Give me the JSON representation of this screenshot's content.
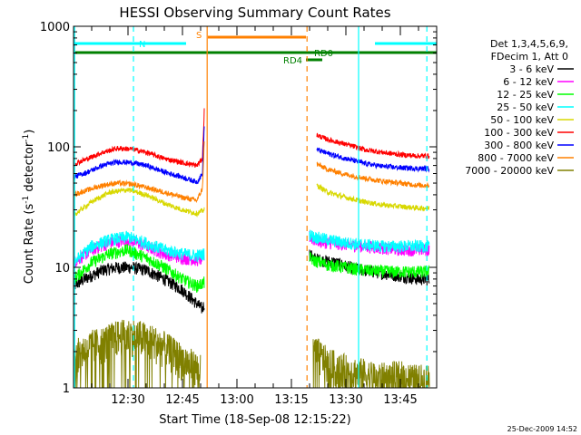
{
  "chart_data": {
    "type": "line",
    "title": "HESSI Observing Summary Count Rates",
    "xlabel": "Start Time (18-Sep-08 12:15:22)",
    "ylabel": "Count Rate (s⁻¹ detector⁻¹)",
    "ylabel_parts": [
      "Count Rate (s",
      "-1",
      " detector",
      "-1",
      ")"
    ],
    "y_scale": "log",
    "ylim": [
      1,
      1000
    ],
    "y_ticks": [
      1,
      10,
      100,
      1000
    ],
    "y_tick_labels": [
      "1",
      "10",
      "100",
      "1000"
    ],
    "xlim_minutes_after_start": [
      0,
      100
    ],
    "x_tick_minutes": [
      15,
      30,
      45,
      60,
      75,
      90
    ],
    "x_tick_labels": [
      "12:30",
      "12:45",
      "13:00",
      "13:15",
      "13:30",
      "13:45"
    ],
    "legend_header": [
      "Det 1,3,4,5,6,9,",
      "FDecim 1, Att 0"
    ],
    "legend_position": "right",
    "date_stamp": "25-Dec-2009 14:52",
    "gap_minutes": [
      36,
      65
    ],
    "series": [
      {
        "name": "3 - 6 keV",
        "color": "#000000",
        "pre": [
          [
            0,
            7
          ],
          [
            3,
            8
          ],
          [
            8,
            9.5
          ],
          [
            12,
            10
          ],
          [
            16,
            10
          ],
          [
            20,
            9.5
          ],
          [
            25,
            8
          ],
          [
            30,
            6.5
          ],
          [
            34,
            5
          ],
          [
            35.5,
            4.5
          ],
          [
            36,
            5
          ]
        ],
        "post": [
          [
            65,
            13
          ],
          [
            66,
            12
          ],
          [
            68,
            11.5
          ],
          [
            72,
            11
          ],
          [
            76,
            10
          ],
          [
            80,
            9.5
          ],
          [
            85,
            9
          ],
          [
            90,
            8.5
          ],
          [
            95,
            8
          ],
          [
            98,
            8
          ]
        ]
      },
      {
        "name": "6 - 12 keV",
        "color": "#ff00ff",
        "pre": [
          [
            0,
            11
          ],
          [
            5,
            14
          ],
          [
            10,
            16
          ],
          [
            15,
            17
          ],
          [
            20,
            15
          ],
          [
            25,
            13
          ],
          [
            30,
            12
          ],
          [
            34,
            11.5
          ],
          [
            36,
            12
          ]
        ],
        "post": [
          [
            65,
            18
          ],
          [
            66,
            17
          ],
          [
            70,
            16
          ],
          [
            75,
            15.5
          ],
          [
            80,
            15
          ],
          [
            85,
            14.5
          ],
          [
            90,
            14
          ],
          [
            95,
            14
          ],
          [
            98,
            14
          ]
        ]
      },
      {
        "name": "12 - 25 keV",
        "color": "#00ff00",
        "pre": [
          [
            0,
            8
          ],
          [
            5,
            11
          ],
          [
            10,
            13
          ],
          [
            15,
            14
          ],
          [
            20,
            12
          ],
          [
            25,
            10
          ],
          [
            30,
            8
          ],
          [
            34,
            7
          ],
          [
            36,
            7.5
          ]
        ],
        "post": [
          [
            65,
            12
          ],
          [
            66,
            11.5
          ],
          [
            70,
            10.5
          ],
          [
            75,
            10
          ],
          [
            80,
            9.5
          ],
          [
            85,
            9.3
          ],
          [
            90,
            9.2
          ],
          [
            95,
            9.2
          ],
          [
            98,
            9.2
          ]
        ]
      },
      {
        "name": "25 - 50 keV",
        "color": "#00ffff",
        "pre": [
          [
            0,
            11
          ],
          [
            5,
            15
          ],
          [
            10,
            17
          ],
          [
            15,
            18
          ],
          [
            20,
            16
          ],
          [
            25,
            14
          ],
          [
            30,
            13
          ],
          [
            34,
            12.5
          ],
          [
            36,
            13
          ]
        ],
        "post": [
          [
            65,
            19
          ],
          [
            66,
            18
          ],
          [
            70,
            17
          ],
          [
            75,
            16
          ],
          [
            80,
            15.5
          ],
          [
            85,
            15
          ],
          [
            90,
            15
          ],
          [
            95,
            15
          ],
          [
            98,
            15
          ]
        ]
      },
      {
        "name": "50 - 100 keV",
        "color": "#d8d800",
        "pre": [
          [
            0,
            27
          ],
          [
            5,
            35
          ],
          [
            10,
            42
          ],
          [
            15,
            44
          ],
          [
            20,
            40
          ],
          [
            25,
            34
          ],
          [
            30,
            30
          ],
          [
            34,
            28
          ],
          [
            36,
            30
          ]
        ],
        "post": [
          [
            67,
            48
          ],
          [
            70,
            42
          ],
          [
            75,
            38
          ],
          [
            80,
            35
          ],
          [
            85,
            33
          ],
          [
            90,
            32
          ],
          [
            95,
            31
          ],
          [
            98,
            31
          ]
        ]
      },
      {
        "name": "100 - 300 keV",
        "color": "#ff0000",
        "pre": [
          [
            0,
            72
          ],
          [
            4,
            80
          ],
          [
            8,
            90
          ],
          [
            12,
            97
          ],
          [
            16,
            96
          ],
          [
            20,
            90
          ],
          [
            25,
            80
          ],
          [
            30,
            74
          ],
          [
            34,
            70
          ],
          [
            35.5,
            80
          ],
          [
            36,
            200
          ]
        ],
        "post": [
          [
            67,
            125
          ],
          [
            70,
            115
          ],
          [
            75,
            105
          ],
          [
            80,
            95
          ],
          [
            85,
            90
          ],
          [
            90,
            86
          ],
          [
            95,
            84
          ],
          [
            98,
            84
          ]
        ]
      },
      {
        "name": "300 - 800 keV",
        "color": "#0000ff",
        "pre": [
          [
            0,
            56
          ],
          [
            4,
            62
          ],
          [
            8,
            70
          ],
          [
            12,
            75
          ],
          [
            16,
            74
          ],
          [
            20,
            70
          ],
          [
            25,
            62
          ],
          [
            30,
            56
          ],
          [
            34,
            51
          ],
          [
            35.5,
            60
          ],
          [
            36,
            150
          ]
        ],
        "post": [
          [
            67,
            95
          ],
          [
            70,
            88
          ],
          [
            75,
            80
          ],
          [
            80,
            73
          ],
          [
            85,
            69
          ],
          [
            90,
            67
          ],
          [
            95,
            66
          ],
          [
            98,
            66
          ]
        ]
      },
      {
        "name": "800 - 7000 keV",
        "color": "#ff8000",
        "pre": [
          [
            0,
            40
          ],
          [
            4,
            44
          ],
          [
            8,
            48
          ],
          [
            12,
            50
          ],
          [
            16,
            49
          ],
          [
            20,
            46
          ],
          [
            25,
            42
          ],
          [
            30,
            38
          ],
          [
            34,
            36
          ],
          [
            35.5,
            45
          ],
          [
            36,
            110
          ]
        ],
        "post": [
          [
            67,
            72
          ],
          [
            70,
            65
          ],
          [
            75,
            59
          ],
          [
            80,
            55
          ],
          [
            85,
            52
          ],
          [
            90,
            50
          ],
          [
            95,
            48
          ],
          [
            98,
            48
          ]
        ]
      },
      {
        "name": "7000 - 20000 keV",
        "color": "#808000",
        "pre": [
          [
            0,
            1.8
          ],
          [
            4,
            2.2
          ],
          [
            8,
            2.4
          ],
          [
            12,
            2.7
          ],
          [
            16,
            2.8
          ],
          [
            20,
            2.6
          ],
          [
            24,
            2.3
          ],
          [
            28,
            1.9
          ],
          [
            32,
            1.6
          ],
          [
            35,
            1.4
          ]
        ],
        "post": [
          [
            66,
            2.1
          ],
          [
            70,
            1.6
          ],
          [
            75,
            1.4
          ],
          [
            80,
            1.3
          ],
          [
            85,
            1.2
          ],
          [
            90,
            1.25
          ],
          [
            95,
            1.15
          ],
          [
            98,
            1.2
          ]
        ]
      }
    ],
    "state_bars": [
      {
        "label": "N",
        "color": "#00ffff",
        "segments": [
          [
            0,
            31
          ],
          [
            83,
            100
          ]
        ]
      },
      {
        "label": "S",
        "color": "#ff8000",
        "segments": [
          [
            37,
            64
          ]
        ]
      },
      {
        "label": "RD0",
        "color": "#008000",
        "segments": [
          [
            0,
            100
          ]
        ]
      },
      {
        "label": "RD4",
        "color": "#008000",
        "segments": [
          [
            64,
            68.5
          ]
        ]
      }
    ],
    "vertical_lines": [
      {
        "x": 0.3,
        "color": "#00ffff",
        "style": "solid"
      },
      {
        "x": 16.5,
        "color": "#00ffff",
        "style": "dashed"
      },
      {
        "x": 36.8,
        "color": "#ff8000",
        "style": "solid"
      },
      {
        "x": 64.3,
        "color": "#ff8000",
        "style": "dashed"
      },
      {
        "x": 78.5,
        "color": "#00ffff",
        "style": "solid"
      },
      {
        "x": 97.3,
        "color": "#00ffff",
        "style": "dashed"
      }
    ]
  }
}
